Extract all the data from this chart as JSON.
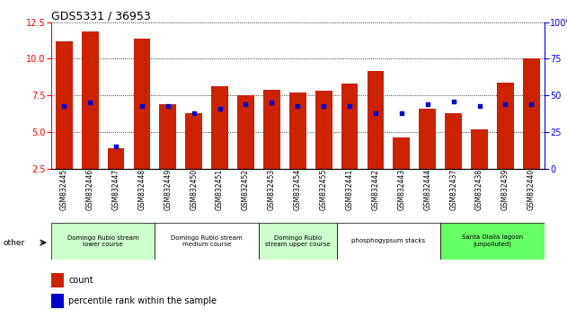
{
  "title": "GDS5331 / 36953",
  "samples": [
    "GSM832445",
    "GSM832446",
    "GSM832447",
    "GSM832448",
    "GSM832449",
    "GSM832450",
    "GSM832451",
    "GSM832452",
    "GSM832453",
    "GSM832454",
    "GSM832455",
    "GSM832441",
    "GSM832442",
    "GSM832443",
    "GSM832444",
    "GSM832437",
    "GSM832438",
    "GSM832439",
    "GSM832440"
  ],
  "counts": [
    11.2,
    11.9,
    3.9,
    11.4,
    6.9,
    6.3,
    8.1,
    7.5,
    7.9,
    7.7,
    7.8,
    8.3,
    9.2,
    4.6,
    6.6,
    6.3,
    5.2,
    8.4,
    10.0
  ],
  "percentiles": [
    43,
    45,
    15,
    43,
    43,
    38,
    41,
    44,
    45,
    43,
    43,
    43,
    38,
    38,
    44,
    46,
    43,
    44,
    44
  ],
  "ylim_left": [
    2.5,
    12.5
  ],
  "ylim_right": [
    0,
    100
  ],
  "yticks_left": [
    2.5,
    5.0,
    7.5,
    10.0,
    12.5
  ],
  "yticks_right": [
    0,
    25,
    50,
    75,
    100
  ],
  "bar_color": "#cc2200",
  "dot_color": "#0000cc",
  "groups": [
    {
      "label": "Domingo Rubio stream\nlower course",
      "start": 0,
      "end": 4,
      "color": "#ccffcc"
    },
    {
      "label": "Domingo Rubio stream\nmedium course",
      "start": 4,
      "end": 8,
      "color": "#ffffff"
    },
    {
      "label": "Domingo Rubio\nstream upper course",
      "start": 8,
      "end": 11,
      "color": "#ccffcc"
    },
    {
      "label": "phosphogypsum stacks",
      "start": 11,
      "end": 15,
      "color": "#ffffff"
    },
    {
      "label": "Santa Olalla lagoon\n(unpolluted)",
      "start": 15,
      "end": 19,
      "color": "#66ff66"
    }
  ]
}
